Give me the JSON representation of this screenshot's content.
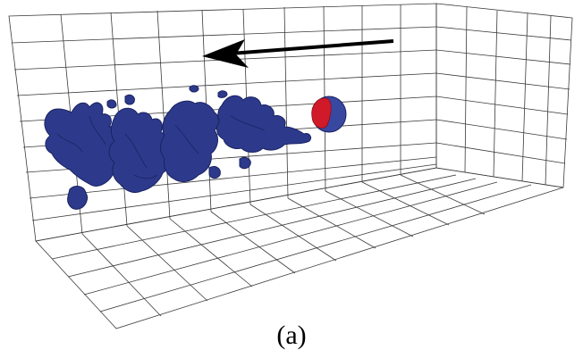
{
  "figure": {
    "caption": "(a)",
    "colors": {
      "grid": "#3a3a3a",
      "wake": "#2d3a8c",
      "wake_shadow": "#1a2260",
      "sphere": "#3848a0",
      "sphere_highlight": "#d01a2a",
      "arrow": "#000000"
    },
    "icons": {
      "flow_direction": "left-arrow-icon"
    }
  }
}
